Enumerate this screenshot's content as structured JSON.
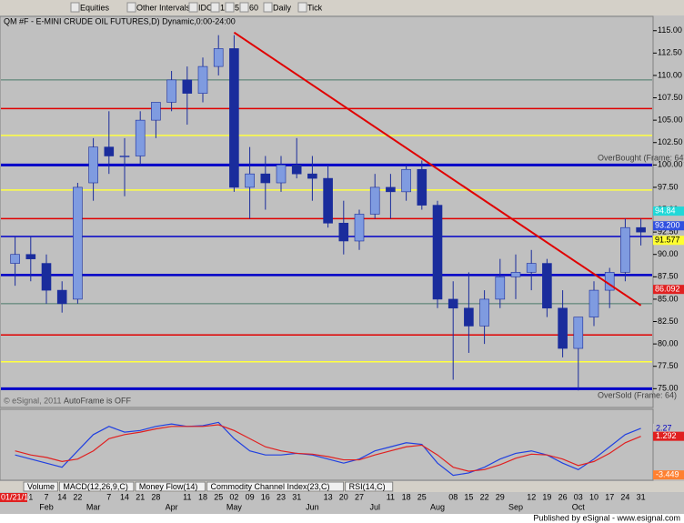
{
  "toolbar": {
    "items": [
      "Equities",
      "Other Intervals",
      "IDC",
      "1",
      "5",
      "60",
      "Daily",
      "Tick"
    ]
  },
  "cursor_date": "01/21/11",
  "tabs": [
    "Volume",
    "MACD(12,26,9,C)",
    "Money Flow(14)",
    "Commodity Channel Index(23,C)",
    "RSI(14,C)"
  ],
  "footer": "Published by eSignal - www.esignal.com",
  "chart_data": [
    {
      "type": "candlestick",
      "title": "QM #F - E-MINI CRUDE OIL FUTURES,D) Dynamic,0:00-24:00",
      "categories": [
        null,
        "1",
        "7",
        "14",
        "22",
        null,
        "7",
        "14",
        "21",
        "28",
        null,
        "11",
        "18",
        "25",
        "02",
        "09",
        "16",
        "23",
        "31",
        null,
        "13",
        "20",
        "27",
        null,
        "11",
        "18",
        "25",
        null,
        "08",
        "15",
        "22",
        "29",
        null,
        "12",
        "19",
        "26",
        "03",
        "10",
        "17",
        "24",
        "31"
      ],
      "months": [
        null,
        null,
        "Feb",
        null,
        null,
        "Mar",
        null,
        null,
        null,
        null,
        "Apr",
        null,
        null,
        null,
        "May",
        null,
        null,
        null,
        null,
        "Jun",
        null,
        null,
        null,
        "Jul",
        null,
        null,
        null,
        "Aug",
        null,
        null,
        null,
        null,
        "Sep",
        null,
        null,
        null,
        "Oct",
        null,
        null,
        null,
        null
      ],
      "open": [
        89,
        90,
        89,
        86,
        85,
        98,
        102,
        101,
        101,
        105,
        107,
        109.5,
        108,
        111,
        113,
        97.5,
        99,
        98,
        100,
        99,
        98.5,
        93.5,
        91.5,
        94.5,
        97.5,
        97,
        99.5,
        95.5,
        85,
        84,
        82,
        85,
        87.5,
        88,
        89,
        84,
        79.5,
        83,
        86,
        88,
        93
      ],
      "high": [
        92,
        92,
        90,
        87,
        98,
        103,
        106,
        103,
        106,
        107,
        110.5,
        111,
        112,
        114.5,
        114.5,
        102,
        101,
        101,
        103,
        101,
        100,
        96,
        95,
        99,
        99,
        100,
        100.5,
        96,
        87,
        88,
        86,
        89.5,
        90,
        90.5,
        89.5,
        86,
        83,
        87,
        88.5,
        94,
        94
      ],
      "low": [
        86.5,
        87,
        84.5,
        83.5,
        84.5,
        96,
        99,
        96.5,
        100,
        103,
        106,
        104.5,
        107,
        110,
        97,
        94,
        95,
        97,
        98.5,
        96,
        93,
        90,
        90.5,
        94,
        94,
        96,
        95,
        84,
        76,
        79,
        80,
        84,
        85,
        86,
        83,
        78.5,
        74.8,
        82,
        84,
        87,
        91
      ],
      "close": [
        90,
        89.5,
        86,
        84.5,
        97.5,
        102,
        101,
        101,
        105,
        107,
        109.5,
        108,
        111,
        113,
        97.5,
        99,
        98,
        100,
        99,
        98.5,
        93.5,
        91.5,
        94.5,
        97.5,
        97,
        99.5,
        95.5,
        85,
        84,
        82,
        85,
        87.5,
        88,
        89,
        84,
        79.5,
        83,
        86,
        88,
        93,
        92.5
      ],
      "up_color": "#7f9be0",
      "down_color": "#1a2c9c",
      "ylim": [
        73,
        116.6
      ],
      "yticks": [
        {
          "value": 75,
          "label": "75.00"
        },
        {
          "value": 77.5,
          "label": "77.50"
        },
        {
          "value": 80,
          "label": "80.00"
        },
        {
          "value": 82.5,
          "label": "82.50"
        },
        {
          "value": 85,
          "label": "85.00"
        },
        {
          "value": 87.5,
          "label": "87.50"
        },
        {
          "value": 90,
          "label": "90.00"
        },
        {
          "value": 92.5,
          "label": "92.50"
        },
        {
          "value": 95,
          "label": "95.00"
        },
        {
          "value": 97.5,
          "label": "97.50"
        },
        {
          "value": 100,
          "label": "100.00"
        },
        {
          "value": 102.5,
          "label": "102.50"
        },
        {
          "value": 105,
          "label": "105.00"
        },
        {
          "value": 107.5,
          "label": "107.50"
        },
        {
          "value": 110,
          "label": "110.00"
        },
        {
          "value": 112.5,
          "label": "112.50"
        },
        {
          "value": 115,
          "label": "115.00"
        }
      ],
      "levels": [
        {
          "value": 109.5,
          "color": "#4a7a6a",
          "width": 1
        },
        {
          "value": 106.3,
          "color": "#e00000",
          "width": 1.5
        },
        {
          "value": 103.3,
          "color": "#ffff40",
          "width": 1.5
        },
        {
          "value": 100,
          "color": "#0000c8",
          "width": 3
        },
        {
          "value": 97.2,
          "color": "#ffff40",
          "width": 1.5
        },
        {
          "value": 94,
          "color": "#e00000",
          "width": 1.5
        },
        {
          "value": 92,
          "color": "#0000c8",
          "width": 1.5
        },
        {
          "value": 87.7,
          "color": "#0000c8",
          "width": 2.5
        },
        {
          "value": 84.5,
          "color": "#4a7a6a",
          "width": 1
        },
        {
          "value": 81,
          "color": "#e00000",
          "width": 1.5
        },
        {
          "value": 78,
          "color": "#ffff40",
          "width": 1.5
        },
        {
          "value": 75,
          "color": "#0000c8",
          "width": 3
        }
      ],
      "trendline": {
        "color": "#e00000",
        "start_index": 14,
        "end_index": 40,
        "values": [
          114.8,
          84.3
        ]
      },
      "price_markers": [
        {
          "value": 94.84,
          "color": "#20d8d8"
        },
        {
          "value": 93.2,
          "label": "93.200",
          "color": "#3050e0"
        },
        {
          "value": 91.577,
          "color": "#ffff30"
        },
        {
          "value": 86.092,
          "color": "#e02020"
        }
      ],
      "annotations": [
        "OverBought (Frame: 64)",
        "OverSold (Frame: 64)",
        "AutoFrame is OFF",
        "© eSignal, 2011"
      ]
    },
    {
      "type": "line",
      "series": [
        {
          "color": "#2040e0",
          "values": [
            -1,
            -1.5,
            -2,
            -2.5,
            -0.5,
            1.5,
            2.5,
            1.8,
            2,
            2.5,
            2.8,
            2.5,
            2.6,
            3,
            1,
            -0.5,
            -1,
            -1,
            -0.8,
            -1,
            -1.5,
            -2,
            -1.5,
            -0.5,
            0,
            0.5,
            0.3,
            -2,
            -3.5,
            -3.2,
            -2.5,
            -1.5,
            -0.8,
            -0.5,
            -1,
            -2,
            -2.8,
            -1.5,
            0,
            1.5,
            2.27
          ]
        },
        {
          "color": "#e02020",
          "values": [
            -0.5,
            -1,
            -1.3,
            -1.8,
            -1.5,
            -0.5,
            1,
            1.5,
            1.8,
            2.2,
            2.5,
            2.5,
            2.5,
            2.7,
            2,
            1,
            0,
            -0.5,
            -0.8,
            -0.9,
            -1.2,
            -1.6,
            -1.6,
            -1,
            -0.5,
            0,
            0.2,
            -1,
            -2.5,
            -3,
            -2.8,
            -2.2,
            -1.4,
            -0.9,
            -1,
            -1.5,
            -2.3,
            -1.8,
            -0.8,
            0.5,
            1.292
          ]
        }
      ],
      "ylim": [
        -4.1,
        4.6
      ],
      "markers": [
        {
          "value": 2.27,
          "color": "#c0c0c0"
        },
        {
          "value": 1.292,
          "color": "#e02020"
        },
        {
          "value": -3.449,
          "color": "#ff8030"
        }
      ]
    }
  ]
}
